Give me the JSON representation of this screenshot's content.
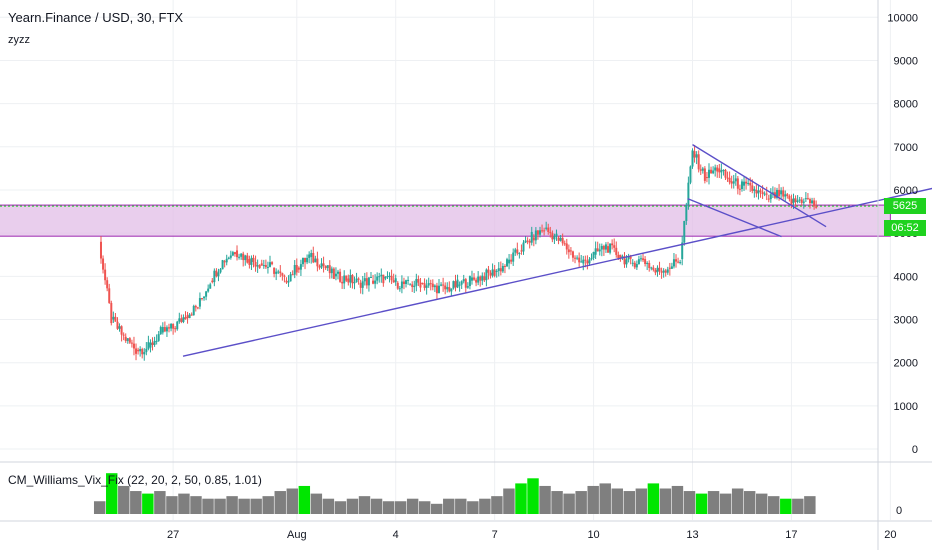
{
  "header": {
    "symbol": "Yearn.Finance / USD, 30, FTX",
    "sub": "zyzz"
  },
  "indicator": {
    "label": "CM_Williams_Vix_Fix (22, 20, 2, 50, 0.85, 1.01)",
    "axis_zero": "0"
  },
  "price_axis": {
    "current_price": "5625",
    "countdown": "06:52"
  },
  "colors": {
    "up": "#26a69a",
    "down": "#ef5350",
    "zone": "#e1bee7",
    "zone_border": "#9c27b0",
    "trendline": "#5b4fc8",
    "vix_gray": "#7f7f7f",
    "vix_green": "#00e600",
    "price_line": "#1fd21f"
  },
  "chart_data": {
    "type": "line",
    "title": "Yearn.Finance / USD, 30, FTX",
    "x_ticks": [
      "27",
      "Aug",
      "4",
      "7",
      "10",
      "13",
      "17",
      "20"
    ],
    "y_ticks": [
      0,
      1000,
      2000,
      3000,
      4000,
      5000,
      6000,
      7000,
      8000,
      9000,
      10000
    ],
    "y_tick_labels_shown": [
      "0",
      "1000",
      "2000",
      "3000",
      "4000",
      "5000",
      "6000",
      "7000",
      "8000",
      "9000",
      "10000"
    ],
    "ylim": [
      -300,
      10400
    ],
    "xlim_days": [
      -7,
      28.5
    ],
    "grid": true,
    "series": [
      {
        "values": [
          [
            -3.0,
            4800
          ],
          [
            -2.5,
            3000
          ],
          [
            -2.0,
            2600
          ],
          [
            -1.5,
            2300
          ],
          [
            -1.0,
            2350
          ],
          [
            -0.5,
            2700
          ],
          [
            0.0,
            2800
          ],
          [
            0.5,
            3100
          ],
          [
            1.0,
            3300
          ],
          [
            1.5,
            3900
          ],
          [
            2.0,
            4350
          ],
          [
            2.5,
            4600
          ],
          [
            3.0,
            4400
          ],
          [
            3.5,
            4300
          ],
          [
            4.0,
            4200
          ],
          [
            4.5,
            3900
          ],
          [
            5.0,
            4200
          ],
          [
            5.5,
            4450
          ],
          [
            6.0,
            4300
          ],
          [
            6.5,
            4000
          ],
          [
            7.0,
            3950
          ],
          [
            7.5,
            3850
          ],
          [
            8.0,
            3900
          ],
          [
            8.5,
            3950
          ],
          [
            9.0,
            3850
          ],
          [
            9.5,
            3800
          ],
          [
            10.0,
            3850
          ],
          [
            10.5,
            3750
          ],
          [
            11.0,
            3700
          ],
          [
            11.5,
            3800
          ],
          [
            12.0,
            3900
          ],
          [
            12.5,
            4000
          ],
          [
            13.0,
            4100
          ],
          [
            13.5,
            4300
          ],
          [
            14.0,
            4600
          ],
          [
            14.5,
            4900
          ],
          [
            15.0,
            5100
          ],
          [
            15.5,
            4900
          ],
          [
            16.0,
            4600
          ],
          [
            16.5,
            4300
          ],
          [
            17.0,
            4500
          ],
          [
            17.5,
            4700
          ],
          [
            18.0,
            4500
          ],
          [
            18.5,
            4300
          ],
          [
            19.0,
            4400
          ],
          [
            19.5,
            4100
          ],
          [
            20.0,
            4200
          ],
          [
            20.5,
            4400
          ],
          [
            21.0,
            6900
          ],
          [
            21.5,
            6300
          ],
          [
            22.0,
            6500
          ],
          [
            22.5,
            6200
          ],
          [
            23.0,
            6100
          ],
          [
            23.5,
            6000
          ],
          [
            24.0,
            5800
          ],
          [
            24.5,
            5900
          ],
          [
            25.0,
            5700
          ],
          [
            25.5,
            5800
          ],
          [
            26.0,
            5625
          ]
        ]
      }
    ],
    "zone": {
      "y_low": 4930,
      "y_high": 5650,
      "x_start": -7.5,
      "x_end": 29.0
    },
    "trendlines": [
      {
        "x1": 0.4,
        "y1": 2150,
        "x2": 32.6,
        "y2": 6280
      },
      {
        "x1": 21.0,
        "y1": 7050,
        "x2": 26.4,
        "y2": 5150
      },
      {
        "x1": 20.8,
        "y1": 5800,
        "x2": 24.6,
        "y2": 4920
      }
    ],
    "vix_values": [
      0.25,
      0.8,
      0.55,
      0.45,
      0.4,
      0.45,
      0.35,
      0.4,
      0.35,
      0.3,
      0.3,
      0.35,
      0.3,
      0.3,
      0.35,
      0.45,
      0.5,
      0.55,
      0.4,
      0.3,
      0.25,
      0.3,
      0.35,
      0.3,
      0.25,
      0.25,
      0.3,
      0.25,
      0.2,
      0.3,
      0.3,
      0.25,
      0.3,
      0.35,
      0.5,
      0.6,
      0.7,
      0.55,
      0.45,
      0.4,
      0.45,
      0.55,
      0.6,
      0.5,
      0.45,
      0.5,
      0.6,
      0.5,
      0.55,
      0.45,
      0.4,
      0.45,
      0.4,
      0.5,
      0.45,
      0.4,
      0.35,
      0.3,
      0.3,
      0.35
    ],
    "vix_green_index": [
      1,
      4,
      17,
      35,
      36,
      46,
      50,
      57
    ]
  }
}
